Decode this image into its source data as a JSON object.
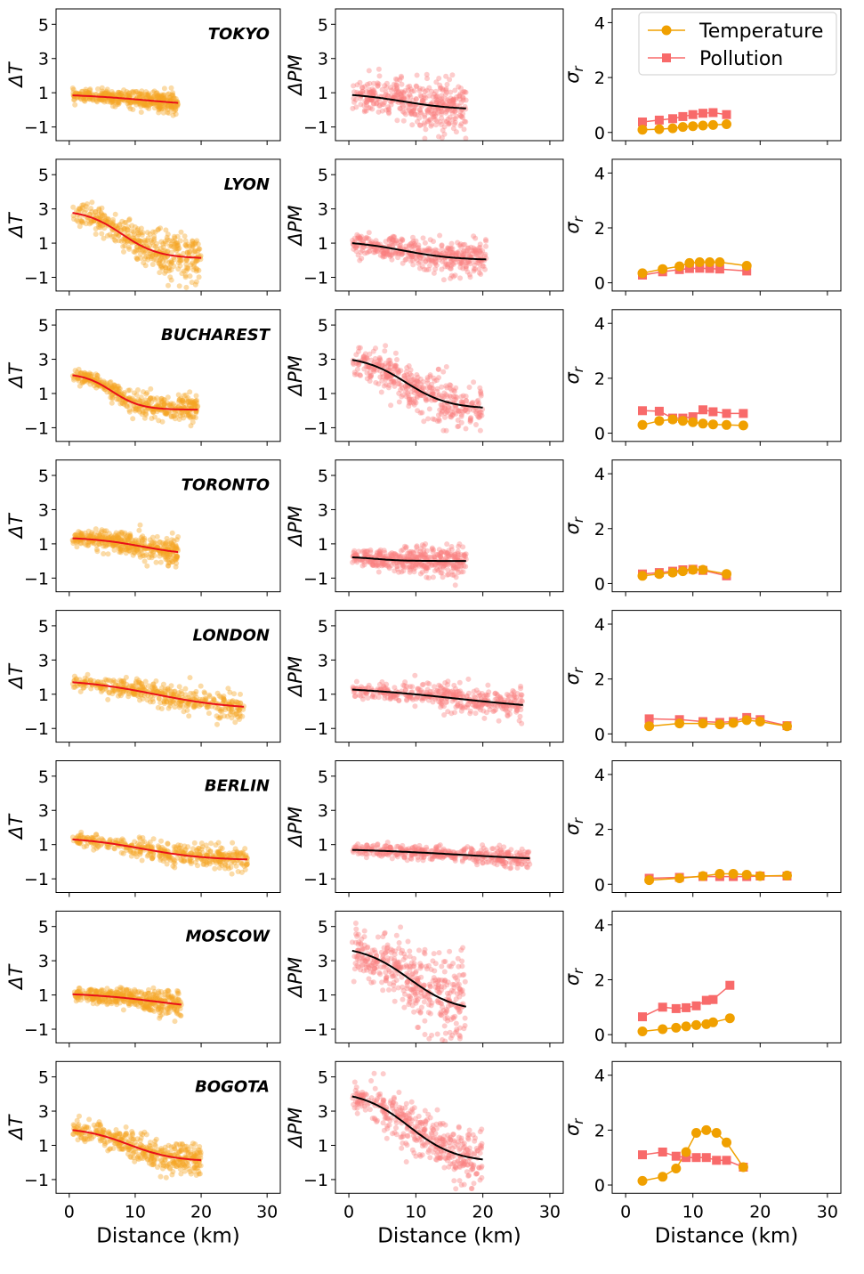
{
  "chart_data": {
    "type": "scatter",
    "layout": "8x3 grid",
    "xlabel": "Distance (km)",
    "xlim": [
      -2,
      32
    ],
    "xticks": [
      0,
      10,
      20,
      30
    ],
    "col1": {
      "ylabel": "ΔT",
      "ylim": [
        -1.8,
        5.9
      ],
      "yticks": [
        -1,
        1,
        3,
        5
      ],
      "point_color": "#f5a623",
      "fit_color": "#e8101a"
    },
    "col2": {
      "ylabel": "ΔPM",
      "ylim": [
        -1.8,
        5.9
      ],
      "yticks": [
        -1,
        1,
        3,
        5
      ],
      "point_color": "#fa7f7f",
      "fit_color": "#000000"
    },
    "col3": {
      "ylabel": "σ_r",
      "ylim": [
        -0.3,
        4.5
      ],
      "yticks": [
        0,
        2,
        4
      ]
    },
    "legend": {
      "position": "top-right",
      "temperature": {
        "label": "Temperature",
        "color": "#f0a000",
        "marker": "circle"
      },
      "pollution": {
        "label": "Pollution",
        "color": "#f86a6a",
        "marker": "square"
      }
    },
    "cities": [
      {
        "name": "TOKYO",
        "dT": {
          "a": 0.95,
          "b": 0.15,
          "mid": 12,
          "w": 6,
          "xmax": 16.5,
          "noise": 0.25
        },
        "dPM": {
          "a": 1.0,
          "b": 0.0,
          "mid": 8,
          "w": 4,
          "xmax": 17.5,
          "noise": 0.7
        },
        "sigma_x": [
          2.5,
          5,
          7,
          8.5,
          10,
          11.5,
          13,
          15
        ],
        "sigma_temp": [
          0.1,
          0.12,
          0.15,
          0.2,
          0.23,
          0.25,
          0.27,
          0.3
        ],
        "sigma_pol": [
          0.38,
          0.45,
          0.5,
          0.58,
          0.65,
          0.7,
          0.72,
          0.65
        ]
      },
      {
        "name": "LYON",
        "dT": {
          "a": 2.95,
          "b": 0.1,
          "mid": 8,
          "w": 2.8,
          "xmax": 20,
          "noise": 0.6
        },
        "dPM": {
          "a": 1.15,
          "b": 0.0,
          "mid": 8,
          "w": 4,
          "xmax": 20.5,
          "noise": 0.45
        },
        "sigma_x": [
          2.5,
          5.5,
          8,
          9.5,
          11,
          12.5,
          14,
          18
        ],
        "sigma_temp": [
          0.35,
          0.5,
          0.6,
          0.72,
          0.75,
          0.75,
          0.75,
          0.62
        ],
        "sigma_pol": [
          0.28,
          0.4,
          0.48,
          0.52,
          0.53,
          0.52,
          0.5,
          0.43
        ]
      },
      {
        "name": "BUCHAREST",
        "dT": {
          "a": 2.2,
          "b": 0.05,
          "mid": 6.5,
          "w": 2.2,
          "xmax": 19.5,
          "noise": 0.35
        },
        "dPM": {
          "a": 3.2,
          "b": 0.1,
          "mid": 8.5,
          "w": 3.2,
          "xmax": 20,
          "noise": 0.7
        },
        "sigma_x": [
          2.5,
          5,
          7,
          8.5,
          10,
          11.5,
          13,
          15,
          17.5
        ],
        "sigma_temp": [
          0.3,
          0.45,
          0.5,
          0.45,
          0.4,
          0.35,
          0.32,
          0.3,
          0.28
        ],
        "sigma_pol": [
          0.82,
          0.8,
          0.55,
          0.55,
          0.6,
          0.85,
          0.78,
          0.72,
          0.72
        ]
      },
      {
        "name": "TORONTO",
        "dT": {
          "a": 1.4,
          "b": 0.3,
          "mid": 11,
          "w": 4,
          "xmax": 16.5,
          "noise": 0.35
        },
        "dPM": {
          "a": 0.25,
          "b": 0.0,
          "mid": 4,
          "w": 2,
          "xmax": 17.5,
          "noise": 0.4
        },
        "sigma_x": [
          2.5,
          5,
          7,
          8.5,
          10,
          11.5,
          15
        ],
        "sigma_temp": [
          0.28,
          0.35,
          0.4,
          0.45,
          0.5,
          0.5,
          0.35
        ],
        "sigma_pol": [
          0.35,
          0.4,
          0.45,
          0.5,
          0.52,
          0.48,
          0.28
        ]
      },
      {
        "name": "LONDON",
        "dT": {
          "a": 1.9,
          "b": 0.1,
          "mid": 13,
          "w": 6,
          "xmax": 26.5,
          "noise": 0.35
        },
        "dPM": {
          "a": 1.5,
          "b": 0.0,
          "mid": 16,
          "w": 9,
          "xmax": 26,
          "noise": 0.4
        },
        "sigma_x": [
          3.5,
          8,
          11.5,
          14,
          16,
          18,
          20,
          24
        ],
        "sigma_temp": [
          0.28,
          0.38,
          0.38,
          0.35,
          0.4,
          0.5,
          0.45,
          0.28
        ],
        "sigma_pol": [
          0.55,
          0.52,
          0.45,
          0.42,
          0.45,
          0.6,
          0.52,
          0.3
        ]
      },
      {
        "name": "BERLIN",
        "dT": {
          "a": 1.45,
          "b": 0.08,
          "mid": 11,
          "w": 5,
          "xmax": 27,
          "noise": 0.3
        },
        "dPM": {
          "a": 0.8,
          "b": 0.0,
          "mid": 17,
          "w": 9,
          "xmax": 27,
          "noise": 0.25
        },
        "sigma_x": [
          3.5,
          8,
          11.5,
          14,
          16,
          18,
          20,
          24
        ],
        "sigma_temp": [
          0.15,
          0.22,
          0.3,
          0.38,
          0.38,
          0.35,
          0.3,
          0.32
        ],
        "sigma_pol": [
          0.22,
          0.25,
          0.28,
          0.28,
          0.28,
          0.28,
          0.3,
          0.3
        ]
      },
      {
        "name": "MOSCOW",
        "dT": {
          "a": 1.15,
          "b": 0.0,
          "mid": 14,
          "w": 6,
          "xmax": 17,
          "noise": 0.3
        },
        "dPM": {
          "a": 3.9,
          "b": 0.0,
          "mid": 9,
          "w": 3.5,
          "xmax": 17.5,
          "noise": 1.1
        },
        "sigma_x": [
          2.5,
          5.5,
          7.5,
          9,
          10.5,
          12,
          13,
          15.5
        ],
        "sigma_temp": [
          0.12,
          0.2,
          0.25,
          0.3,
          0.35,
          0.38,
          0.45,
          0.6
        ],
        "sigma_pol": [
          0.65,
          1.0,
          0.95,
          0.98,
          1.05,
          1.25,
          1.28,
          1.8
        ]
      },
      {
        "name": "BOGOTA",
        "dT": {
          "a": 2.05,
          "b": 0.05,
          "mid": 9,
          "w": 3.5,
          "xmax": 20,
          "noise": 0.45
        },
        "dPM": {
          "a": 4.2,
          "b": 0.0,
          "mid": 9,
          "w": 3.5,
          "xmax": 20,
          "noise": 0.75
        },
        "sigma_x": [
          2.5,
          5.5,
          7.5,
          9,
          10.5,
          12,
          13.5,
          15,
          17.5
        ],
        "sigma_temp": [
          0.15,
          0.3,
          0.6,
          1.2,
          1.9,
          2.0,
          1.9,
          1.55,
          0.65
        ],
        "sigma_pol": [
          1.1,
          1.2,
          1.05,
          1.0,
          1.0,
          1.0,
          0.9,
          0.9,
          0.65
        ]
      }
    ]
  }
}
